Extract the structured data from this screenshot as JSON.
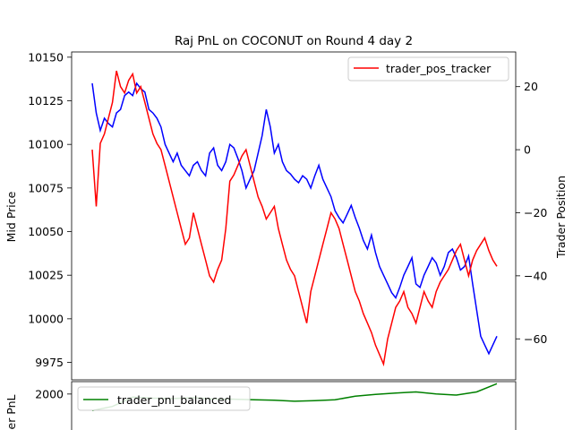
{
  "chart_data": [
    {
      "type": "line",
      "title": "Raj PnL on COCONUT on Round 4 day 2",
      "ylabel": "Mid Price",
      "y2label": "Trader Position",
      "ylim": [
        9965,
        10153
      ],
      "y2lim": [
        -73,
        31
      ],
      "yticks": [
        "10150",
        "10125",
        "10100",
        "10075",
        "10050",
        "10025",
        "10000",
        "9975"
      ],
      "y2ticks": [
        "20",
        "0",
        "−20",
        "−40",
        "−60"
      ],
      "legend": {
        "position": "top-right",
        "entries": [
          "trader_pos_tracker"
        ]
      },
      "grid": false,
      "series": [
        {
          "name": "mid_price",
          "axis": "left",
          "color": "#0000ff",
          "x": [
            0,
            1,
            2,
            3,
            4,
            5,
            6,
            7,
            8,
            9,
            10,
            11,
            12,
            13,
            14,
            15,
            16,
            17,
            18,
            19,
            20,
            21,
            22,
            23,
            24,
            25,
            26,
            27,
            28,
            29,
            30,
            31,
            32,
            33,
            34,
            35,
            36,
            37,
            38,
            39,
            40,
            41,
            42,
            43,
            44,
            45,
            46,
            47,
            48,
            49,
            50,
            51,
            52,
            53,
            54,
            55,
            56,
            57,
            58,
            59,
            60,
            61,
            62,
            63,
            64,
            65,
            66,
            67,
            68,
            69,
            70,
            71,
            72,
            73,
            74,
            75,
            76,
            77,
            78,
            79,
            80,
            81,
            82,
            83,
            84,
            85,
            86,
            87,
            88,
            89,
            90,
            91,
            92,
            93,
            94,
            95,
            96,
            97,
            98,
            99,
            100
          ],
          "values": [
            10135,
            10118,
            10108,
            10115,
            10112,
            10110,
            10118,
            10120,
            10128,
            10130,
            10128,
            10135,
            10132,
            10130,
            10120,
            10118,
            10115,
            10110,
            10100,
            10095,
            10090,
            10095,
            10088,
            10085,
            10082,
            10088,
            10090,
            10085,
            10082,
            10095,
            10098,
            10088,
            10085,
            10090,
            10100,
            10098,
            10092,
            10085,
            10075,
            10080,
            10085,
            10095,
            10105,
            10120,
            10110,
            10095,
            10100,
            10090,
            10085,
            10083,
            10080,
            10078,
            10082,
            10080,
            10075,
            10082,
            10088,
            10080,
            10075,
            10070,
            10062,
            10058,
            10055,
            10060,
            10065,
            10058,
            10052,
            10045,
            10040,
            10048,
            10038,
            10030,
            10025,
            10020,
            10015,
            10012,
            10018,
            10025,
            10030,
            10035,
            10020,
            10018,
            10025,
            10030,
            10035,
            10032,
            10025,
            10030,
            10038,
            10040,
            10035,
            10028,
            10030,
            10036,
            10020,
            10005,
            9990,
            9985,
            9980,
            9985,
            9990
          ]
        },
        {
          "name": "trader_pos_tracker",
          "axis": "right",
          "color": "#ff0000",
          "x": [
            0,
            1,
            2,
            3,
            4,
            5,
            6,
            7,
            8,
            9,
            10,
            11,
            12,
            13,
            14,
            15,
            16,
            17,
            18,
            19,
            20,
            21,
            22,
            23,
            24,
            25,
            26,
            27,
            28,
            29,
            30,
            31,
            32,
            33,
            34,
            35,
            36,
            37,
            38,
            39,
            40,
            41,
            42,
            43,
            44,
            45,
            46,
            47,
            48,
            49,
            50,
            51,
            52,
            53,
            54,
            55,
            56,
            57,
            58,
            59,
            60,
            61,
            62,
            63,
            64,
            65,
            66,
            67,
            68,
            69,
            70,
            71,
            72,
            73,
            74,
            75,
            76,
            77,
            78,
            79,
            80,
            81,
            82,
            83,
            84,
            85,
            86,
            87,
            88,
            89,
            90,
            91,
            92,
            93,
            94,
            95,
            96,
            97,
            98,
            99,
            100
          ],
          "values": [
            0,
            -18,
            2,
            5,
            10,
            15,
            25,
            20,
            18,
            22,
            24,
            18,
            20,
            15,
            10,
            5,
            2,
            0,
            -5,
            -10,
            -15,
            -20,
            -25,
            -30,
            -28,
            -20,
            -25,
            -30,
            -35,
            -40,
            -42,
            -38,
            -35,
            -25,
            -10,
            -8,
            -5,
            -2,
            0,
            -5,
            -10,
            -15,
            -18,
            -22,
            -20,
            -18,
            -25,
            -30,
            -35,
            -38,
            -40,
            -45,
            -50,
            -55,
            -45,
            -40,
            -35,
            -30,
            -25,
            -20,
            -22,
            -25,
            -30,
            -35,
            -40,
            -45,
            -48,
            -52,
            -55,
            -58,
            -62,
            -65,
            -68,
            -60,
            -55,
            -50,
            -48,
            -45,
            -50,
            -52,
            -55,
            -50,
            -45,
            -48,
            -50,
            -45,
            -42,
            -40,
            -38,
            -35,
            -32,
            -30,
            -35,
            -40,
            -35,
            -32,
            -30,
            -28,
            -32,
            -35,
            -37
          ]
        }
      ]
    },
    {
      "type": "line",
      "ylabel": "er PnL",
      "yticks": [
        "2000"
      ],
      "ylim": [
        1800,
        2060
      ],
      "legend": {
        "position": "top-left",
        "entries": [
          "trader_pnl_balanced"
        ]
      },
      "grid": false,
      "series": [
        {
          "name": "trader_pnl_balanced",
          "color": "#008000",
          "x": [
            0,
            5,
            10,
            15,
            20,
            25,
            30,
            35,
            40,
            45,
            50,
            55,
            60,
            65,
            70,
            75,
            80,
            85,
            90,
            95,
            100
          ],
          "values": [
            1920,
            1940,
            1985,
            1980,
            1978,
            1982,
            1976,
            1975,
            1972,
            1970,
            1965,
            1968,
            1972,
            1990,
            1998,
            2005,
            2010,
            2000,
            1995,
            2010,
            2050
          ]
        }
      ]
    }
  ]
}
